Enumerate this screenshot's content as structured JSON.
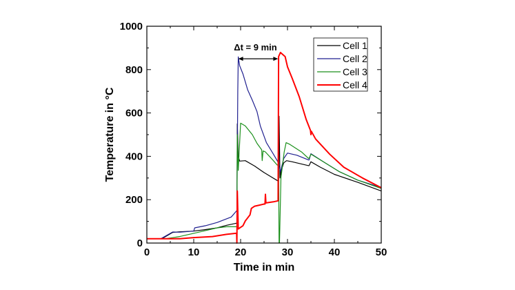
{
  "chart_data": {
    "type": "line",
    "title": "",
    "xlabel": "Time in min",
    "ylabel": "Temperature in °C",
    "xlim": [
      0,
      50
    ],
    "ylim": [
      0,
      1000
    ],
    "xticks": [
      0,
      10,
      20,
      30,
      40,
      50
    ],
    "yticks": [
      0,
      200,
      400,
      600,
      800,
      1000
    ],
    "grid": false,
    "legend_position": "top-right",
    "annotation": {
      "text": "Δt = 9 min",
      "x_start": 19.5,
      "x_end": 28,
      "y": 850
    },
    "series": [
      {
        "name": "Cell 1",
        "color": "#000000",
        "x": [
          0,
          3.2,
          5.5,
          7,
          10,
          12.5,
          15,
          17,
          19,
          19.2,
          19.3,
          19.5,
          19.8,
          21,
          23,
          25,
          28,
          28.1,
          28.2,
          28.4,
          28.6,
          29.2,
          29.8,
          31,
          34.5,
          34.6,
          35,
          37,
          40,
          45,
          50
        ],
        "y": [
          20,
          20,
          49,
          52,
          55,
          62,
          70,
          82,
          91,
          91,
          550,
          400,
          378,
          380,
          355,
          325,
          286,
          286,
          585,
          300,
          330,
          370,
          380,
          375,
          357,
          357,
          375,
          350,
          317,
          280,
          240
        ]
      },
      {
        "name": "Cell 2",
        "color": "#1f1f8f",
        "x": [
          0,
          3,
          5.5,
          7,
          10,
          10.2,
          12.5,
          15,
          18,
          19.2,
          19.4,
          19.5,
          19.8,
          20.5,
          21.5,
          22.5,
          23.5,
          24.2,
          25.5,
          27,
          28,
          28.5,
          29.2,
          30,
          32,
          34.5,
          34.6,
          35,
          38,
          41,
          45,
          50
        ],
        "y": [
          20,
          20,
          51,
          50,
          55,
          70,
          80,
          95,
          120,
          150,
          700,
          859,
          818,
          780,
          707,
          659,
          606,
          540,
          463,
          410,
          373,
          330,
          390,
          415,
          405,
          383,
          383,
          412,
          370,
          330,
          290,
          256
        ]
      },
      {
        "name": "Cell 3",
        "color": "#1a8f1a",
        "x": [
          0,
          4,
          7,
          10,
          13,
          15,
          17,
          19,
          19.2,
          19.3,
          19.5,
          20,
          21,
          22.5,
          23.5,
          24.5,
          24.6,
          24.8,
          25.3,
          27,
          27.8,
          28.1,
          28.2,
          28.3,
          28.6,
          29.3,
          29.7,
          30.5,
          33,
          34.5,
          34.6,
          35,
          38,
          41,
          45,
          50
        ],
        "y": [
          20,
          20,
          30,
          45,
          60,
          70,
          75,
          75,
          75,
          500,
          335,
          553,
          540,
          500,
          460,
          430,
          380,
          425,
          420,
          380,
          360,
          360,
          0,
          0,
          300,
          420,
          463,
          455,
          420,
          390,
          390,
          410,
          370,
          330,
          290,
          252
        ]
      },
      {
        "name": "Cell 4",
        "color": "#ff0000",
        "x": [
          0,
          7,
          10,
          14,
          17,
          19,
          19.15,
          19.2,
          19.3,
          19.5,
          20.5,
          21,
          22,
          22.3,
          23,
          24,
          25,
          25.2,
          25.3,
          25.4,
          27,
          28,
          28.1,
          28.5,
          29.5,
          30,
          31,
          32.5,
          34,
          34.9,
          35,
          35.1,
          36,
          39,
          42,
          46,
          50
        ],
        "y": [
          20,
          20,
          25,
          30,
          40,
          45,
          45,
          0,
          240,
          65,
          80,
          102,
          130,
          160,
          170,
          175,
          180,
          180,
          225,
          185,
          190,
          195,
          860,
          879,
          860,
          813,
          760,
          675,
          569,
          520,
          500,
          515,
          480,
          410,
          350,
          300,
          255
        ]
      }
    ]
  }
}
